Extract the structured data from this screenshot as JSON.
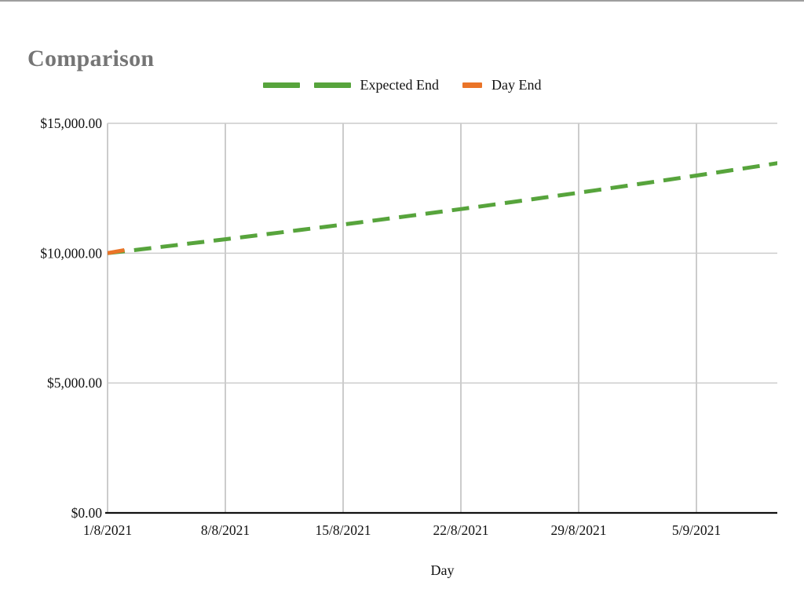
{
  "window": {
    "background": "#ffffff",
    "top_border_color": "#9e9e9e"
  },
  "chart_data": {
    "type": "line",
    "title": "Comparison",
    "title_color": "#757575",
    "xlabel": "Day",
    "ylabel": "",
    "ylim": [
      0,
      15000
    ],
    "grid": true,
    "gridline_color": "#cccccc",
    "axis_line_color": "#111111",
    "legend_position": "top-center",
    "yticks": [
      {
        "value": 0,
        "label": "$0.00"
      },
      {
        "value": 5000,
        "label": "$5,000.00"
      },
      {
        "value": 10000,
        "label": "$10,000.00"
      },
      {
        "value": 15000,
        "label": "$15,000.00"
      }
    ],
    "xticks": [
      {
        "day": 0,
        "label": "1/8/2021"
      },
      {
        "day": 7,
        "label": "8/8/2021"
      },
      {
        "day": 14,
        "label": "15/8/2021"
      },
      {
        "day": 21,
        "label": "22/8/2021"
      },
      {
        "day": 28,
        "label": "29/8/2021"
      },
      {
        "day": 35,
        "label": "5/9/2021"
      }
    ],
    "x_axis_day_range": [
      0,
      40
    ],
    "series": [
      {
        "name": "Expected End",
        "color": "#57a43c",
        "line_style": "dashed",
        "dates": [
          "1/8/2021",
          "2/8/2021",
          "3/8/2021",
          "4/8/2021",
          "5/8/2021",
          "6/8/2021",
          "7/8/2021",
          "8/8/2021",
          "9/8/2021",
          "10/8/2021",
          "11/8/2021",
          "12/8/2021",
          "13/8/2021",
          "14/8/2021",
          "15/8/2021",
          "16/8/2021",
          "17/8/2021",
          "18/8/2021",
          "19/8/2021",
          "20/8/2021",
          "21/8/2021",
          "22/8/2021",
          "23/8/2021",
          "24/8/2021",
          "25/8/2021",
          "26/8/2021",
          "27/8/2021",
          "28/8/2021",
          "29/8/2021",
          "30/8/2021",
          "31/8/2021",
          "1/9/2021",
          "2/9/2021",
          "3/9/2021",
          "4/9/2021",
          "5/9/2021",
          "6/9/2021",
          "7/9/2021",
          "8/9/2021",
          "9/9/2021",
          "10/9/2021"
        ],
        "values": [
          10000.0,
          10075.0,
          10150.56,
          10226.69,
          10303.39,
          10380.67,
          10458.52,
          10536.96,
          10615.99,
          10695.61,
          10775.83,
          10856.65,
          10938.07,
          11020.11,
          11102.76,
          11186.03,
          11269.93,
          11354.45,
          11439.61,
          11525.41,
          11611.85,
          11698.94,
          11786.68,
          11875.08,
          11964.14,
          12053.87,
          12144.28,
          12235.36,
          12327.12,
          12419.58,
          12512.72,
          12606.57,
          12701.12,
          12796.38,
          12892.35,
          12989.04,
          13086.46,
          13184.61,
          13283.49,
          13383.12,
          13483.49
        ]
      },
      {
        "name": "Day End",
        "color": "#ea7428",
        "line_style": "solid",
        "dates": [
          "1/8/2021",
          "2/8/2021"
        ],
        "values": [
          10000.0,
          10120.0
        ]
      }
    ]
  }
}
